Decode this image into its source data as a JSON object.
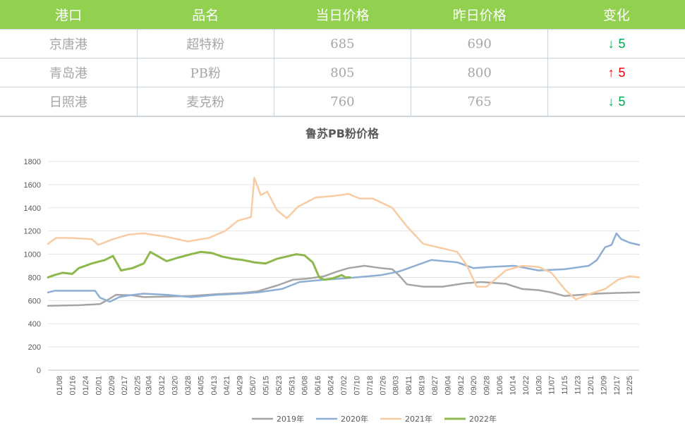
{
  "table": {
    "headers": [
      "港口",
      "品名",
      "当日价格",
      "昨日价格",
      "变化"
    ],
    "rows": [
      {
        "port": "京唐港",
        "product": "超特粉",
        "today": "685",
        "yesterday": "690",
        "change_arrow": "↓",
        "change": "5",
        "direction": "down"
      },
      {
        "port": "青岛港",
        "product": "PB粉",
        "today": "805",
        "yesterday": "800",
        "change_arrow": "↑",
        "change": "5",
        "direction": "up"
      },
      {
        "port": "日照港",
        "product": "麦克粉",
        "today": "760",
        "yesterday": "765",
        "change_arrow": "↓",
        "change": "5",
        "direction": "down"
      }
    ],
    "colors": {
      "header_bg": "#92d050",
      "down": "#00a651",
      "up": "#e8000b"
    }
  },
  "chart_data": {
    "type": "line",
    "title": "鲁苏PB粉价格",
    "xlabel": "",
    "ylabel": "",
    "ylim": [
      0,
      1800
    ],
    "yticks": [
      0,
      200,
      400,
      600,
      800,
      1000,
      1200,
      1400,
      1600,
      1800
    ],
    "x_ticks": [
      "01/08",
      "01/16",
      "01/24",
      "02/01",
      "02/09",
      "02/17",
      "02/25",
      "03/04",
      "03/12",
      "03/20",
      "03/28",
      "04/05",
      "04/13",
      "04/21",
      "04/29",
      "05/07",
      "05/15",
      "05/23",
      "05/31",
      "06/08",
      "06/16",
      "06/24",
      "07/02",
      "07/10",
      "07/18",
      "07/26",
      "08/03",
      "08/11",
      "08/19",
      "08/27",
      "09/04",
      "09/12",
      "09/20",
      "09/28",
      "10/06",
      "10/14",
      "10/22",
      "10/30",
      "11/07",
      "11/15",
      "11/23",
      "12/01",
      "12/09",
      "12/17",
      "12/25"
    ],
    "grid": true,
    "legend_position": "bottom",
    "series": [
      {
        "name": "2019年",
        "color": "#a5a5a5",
        "x": [
          "01/01",
          "01/20",
          "02/02",
          "02/06",
          "02/12",
          "02/22",
          "03/01",
          "03/15",
          "03/30",
          "04/15",
          "04/30",
          "05/10",
          "05/22",
          "06/01",
          "06/10",
          "06/20",
          "06/28",
          "07/05",
          "07/15",
          "07/25",
          "08/01",
          "08/05",
          "08/10",
          "08/20",
          "09/01",
          "09/15",
          "09/25",
          "10/10",
          "10/20",
          "10/30",
          "11/07",
          "11/15",
          "11/25",
          "12/05",
          "12/15",
          "12/31"
        ],
        "y": [
          555,
          560,
          570,
          600,
          650,
          645,
          630,
          635,
          640,
          655,
          665,
          680,
          730,
          780,
          790,
          810,
          850,
          880,
          900,
          880,
          870,
          820,
          740,
          720,
          720,
          750,
          760,
          745,
          700,
          690,
          670,
          640,
          650,
          660,
          665,
          670
        ]
      },
      {
        "name": "2020年",
        "color": "#8eaed3",
        "x": [
          "01/01",
          "01/05",
          "01/30",
          "02/02",
          "02/08",
          "02/14",
          "02/20",
          "03/01",
          "03/15",
          "03/30",
          "04/15",
          "04/30",
          "05/10",
          "05/25",
          "06/05",
          "06/20",
          "07/01",
          "07/10",
          "07/25",
          "08/05",
          "08/15",
          "08/25",
          "09/10",
          "09/20",
          "09/30",
          "10/15",
          "10/30",
          "11/15",
          "11/30",
          "12/05",
          "12/10",
          "12/14",
          "12/17",
          "12/20",
          "12/25",
          "12/31"
        ],
        "y": [
          670,
          685,
          685,
          625,
          590,
          630,
          645,
          660,
          650,
          630,
          650,
          660,
          670,
          700,
          760,
          780,
          790,
          800,
          820,
          850,
          900,
          950,
          930,
          880,
          890,
          900,
          860,
          870,
          900,
          950,
          1060,
          1080,
          1180,
          1130,
          1100,
          1080
        ]
      },
      {
        "name": "2021年",
        "color": "#f8cba2",
        "x": [
          "01/01",
          "01/06",
          "01/15",
          "01/28",
          "02/01",
          "02/10",
          "02/20",
          "03/01",
          "03/15",
          "03/28",
          "04/10",
          "04/20",
          "04/28",
          "05/06",
          "05/08",
          "05/12",
          "05/16",
          "05/22",
          "05/28",
          "06/04",
          "06/15",
          "06/25",
          "07/05",
          "07/12",
          "07/20",
          "08/01",
          "08/10",
          "08/20",
          "09/01",
          "09/10",
          "09/16",
          "09/22",
          "09/28",
          "10/10",
          "10/20",
          "10/30",
          "11/07",
          "11/15",
          "11/22",
          "12/01",
          "12/10",
          "12/18",
          "12/25",
          "12/31"
        ],
        "y": [
          1090,
          1140,
          1140,
          1130,
          1080,
          1130,
          1170,
          1180,
          1150,
          1110,
          1140,
          1200,
          1290,
          1320,
          1660,
          1510,
          1540,
          1380,
          1310,
          1410,
          1490,
          1500,
          1520,
          1480,
          1480,
          1400,
          1240,
          1090,
          1050,
          1020,
          900,
          720,
          720,
          860,
          900,
          890,
          840,
          700,
          610,
          660,
          700,
          780,
          810,
          800
        ]
      },
      {
        "name": "2022年",
        "color": "#8cb84c",
        "x": [
          "01/01",
          "01/05",
          "01/10",
          "01/16",
          "01/20",
          "01/28",
          "02/05",
          "02/10",
          "02/15",
          "02/22",
          "03/01",
          "03/05",
          "03/10",
          "03/15",
          "03/22",
          "03/30",
          "04/05",
          "04/12",
          "04/18",
          "04/25",
          "05/01",
          "05/08",
          "05/15",
          "05/22",
          "05/28",
          "06/03",
          "06/08",
          "06/13",
          "06/17",
          "06/20",
          "06/25",
          "07/01",
          "07/03",
          "07/06"
        ],
        "y": [
          800,
          820,
          840,
          830,
          880,
          920,
          950,
          985,
          860,
          880,
          920,
          1020,
          980,
          940,
          970,
          1000,
          1020,
          1010,
          980,
          960,
          950,
          930,
          920,
          960,
          980,
          1000,
          990,
          930,
          800,
          780,
          790,
          820,
          800,
          800
        ]
      }
    ]
  }
}
